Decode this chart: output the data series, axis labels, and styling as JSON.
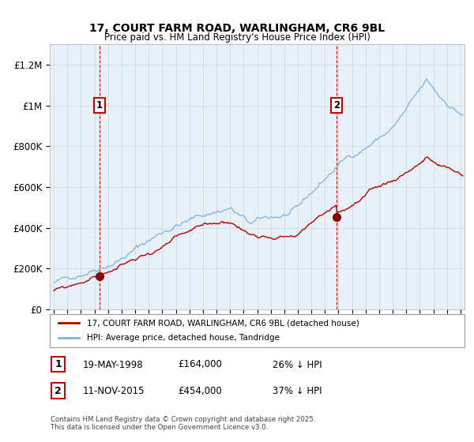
{
  "title": "17, COURT FARM ROAD, WARLINGHAM, CR6 9BL",
  "subtitle": "Price paid vs. HM Land Registry's House Price Index (HPI)",
  "ylabel_ticks": [
    "£0",
    "£200K",
    "£400K",
    "£600K",
    "£800K",
    "£1M",
    "£1.2M"
  ],
  "ytick_vals": [
    0,
    200000,
    400000,
    600000,
    800000,
    1000000,
    1200000
  ],
  "ylim": [
    0,
    1300000
  ],
  "xlim_start": 1994.7,
  "xlim_end": 2025.3,
  "sale1_date": 1998.38,
  "sale1_price": 164000,
  "sale1_label": "1",
  "sale2_date": 2015.87,
  "sale2_price": 454000,
  "sale2_label": "2",
  "hpi_color": "#7ab4d8",
  "price_color": "#bb0000",
  "vline_color": "#cc0000",
  "marker_color": "#880000",
  "grid_color": "#c8d8e8",
  "bg_color": "#e8f0f8",
  "legend_line1": "17, COURT FARM ROAD, WARLINGHAM, CR6 9BL (detached house)",
  "legend_line2": "HPI: Average price, detached house, Tandridge",
  "table_note": "Contains HM Land Registry data © Crown copyright and database right 2025.\nThis data is licensed under the Open Government Licence v3.0.",
  "sale1_info": "19-MAY-1998",
  "sale1_price_str": "£164,000",
  "sale1_hpi_str": "26% ↓ HPI",
  "sale2_info": "11-NOV-2015",
  "sale2_price_str": "£454,000",
  "sale2_hpi_str": "37% ↓ HPI"
}
